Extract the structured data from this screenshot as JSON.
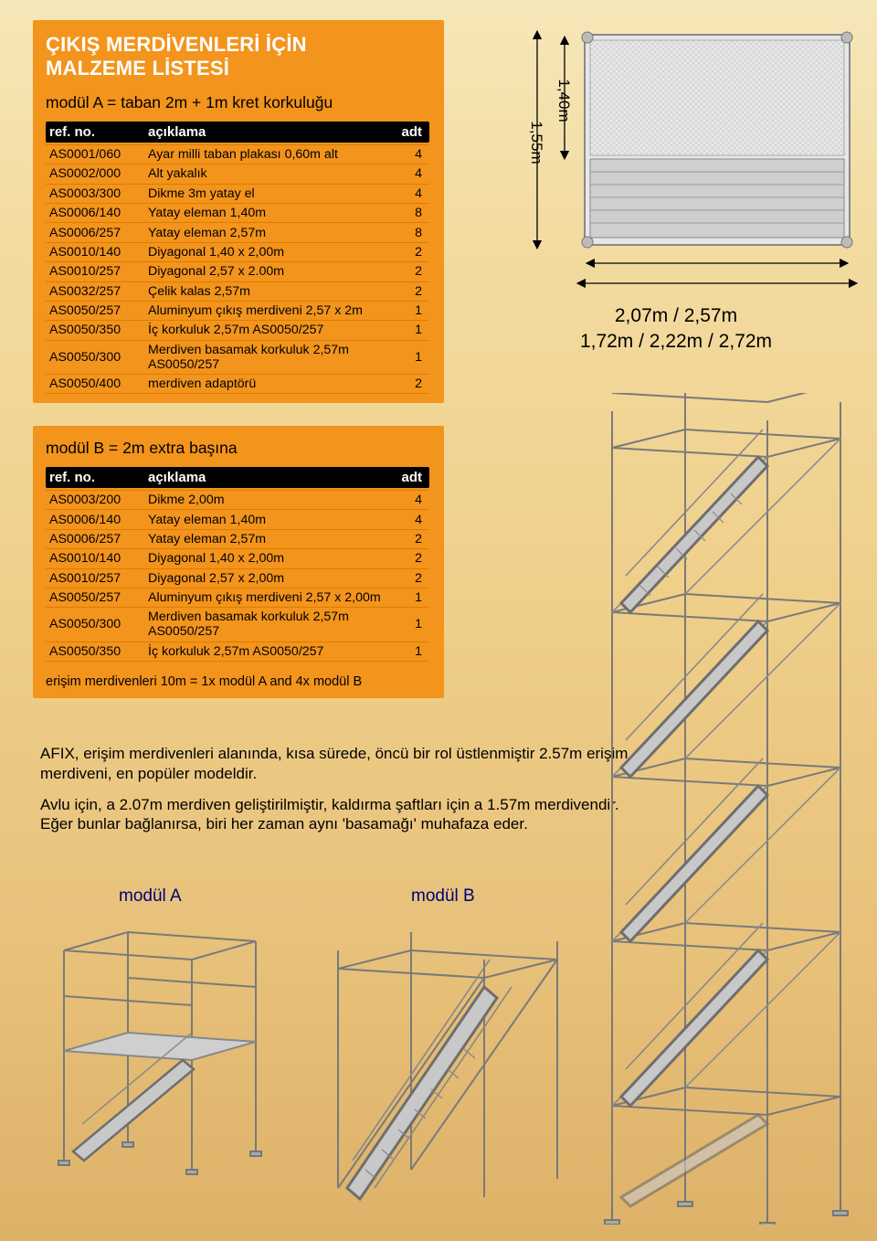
{
  "title_line1": "ÇIKIŞ MERDİVENLERİ İÇİN",
  "title_line2": "MALZEME LİSTESİ",
  "subtitle_a": "modül A = taban 2m + 1m kret korkuluğu",
  "header": {
    "c1": "ref. no.",
    "c2": "açıklama",
    "c3": "adt"
  },
  "rows_a": [
    {
      "c1": "AS0001/060",
      "c2": "Ayar milli  taban plakası 0,60m alt",
      "c3": "4"
    },
    {
      "c1": "AS0002/000",
      "c2": "Alt yakalık",
      "c3": "4"
    },
    {
      "c1": "AS0003/300",
      "c2": "Dikme 3m yatay el",
      "c3": "4"
    },
    {
      "c1": "AS0006/140",
      "c2": "Yatay eleman 1,40m",
      "c3": "8"
    },
    {
      "c1": "AS0006/257",
      "c2": "Yatay eleman 2,57m",
      "c3": "8"
    },
    {
      "c1": "AS0010/140",
      "c2": "Diyagonal 1,40 x 2,00m",
      "c3": "2"
    },
    {
      "c1": "AS0010/257",
      "c2": "Diyagonal 2,57 x 2.00m",
      "c3": "2"
    },
    {
      "c1": "AS0032/257",
      "c2": "Çelik kalas 2,57m",
      "c3": "2"
    },
    {
      "c1": "AS0050/257",
      "c2": "Aluminyum çıkış merdiveni 2,57 x 2m",
      "c3": "1"
    },
    {
      "c1": "AS0050/350",
      "c2": "İç korkuluk 2,57m AS0050/257",
      "c3": "1"
    },
    {
      "c1": "AS0050/300",
      "c2": "Merdiven basamak korkuluk 2,57m AS0050/257",
      "c3": "1"
    },
    {
      "c1": "AS0050/400",
      "c2": "merdiven adaptörü",
      "c3": "2"
    }
  ],
  "subtitle_b": "modül B = 2m extra başına",
  "rows_b": [
    {
      "c1": "AS0003/200",
      "c2": "Dikme 2,00m",
      "c3": "4"
    },
    {
      "c1": "AS0006/140",
      "c2": "Yatay eleman 1,40m",
      "c3": "4"
    },
    {
      "c1": "AS0006/257",
      "c2": "Yatay eleman 2,57m",
      "c3": "2"
    },
    {
      "c1": "AS0010/140",
      "c2": "Diyagonal 1,40 x 2,00m",
      "c3": "2"
    },
    {
      "c1": "AS0010/257",
      "c2": "Diyagonal 2,57 x 2,00m",
      "c3": "2"
    },
    {
      "c1": "AS0050/257",
      "c2": "Aluminyum çıkış merdiveni 2,57 x 2,00m",
      "c3": "1"
    },
    {
      "c1": "AS0050/300",
      "c2": "Merdiven basamak korkuluk 2,57m AS0050/257",
      "c3": "1"
    },
    {
      "c1": "AS0050/350",
      "c2": "İç korkuluk 2,57m AS0050/257",
      "c3": "1"
    }
  ],
  "footnote": "erişim merdivenleri 10m = 1x modül A and 4x modül B",
  "paragraph1": "AFIX, erişim merdivenleri alanında, kısa sürede, öncü bir rol üstlenmiştir 2.57m erişim merdiveni, en popüler modeldir.",
  "paragraph2": "Avlu için, a 2.07m merdiven geliştirilmiştir, kaldırma şaftları için a 1.57m merdivendir. Eğer bunlar bağlanırsa, biri her zaman aynı 'basamağı' muhafaza eder.",
  "label_a": "modül A",
  "label_b": "modül B",
  "dim_height_inner": "1,40m",
  "dim_height_outer": "1,55m",
  "dim_width_top": "2,07m / 2,57m",
  "dim_width_bottom": "1,72m / 2,22m / 2,72m",
  "colors": {
    "orange": "#f3941c",
    "orange_rule": "#e07c00",
    "bg_grad_top": "#f6e7b9",
    "bg_grad_bot": "#ddb168",
    "blue_label": "#00007a",
    "steel_light": "#dcdcdc",
    "steel_dark": "#a8a8a8",
    "steel_line": "#6b6b6b"
  }
}
